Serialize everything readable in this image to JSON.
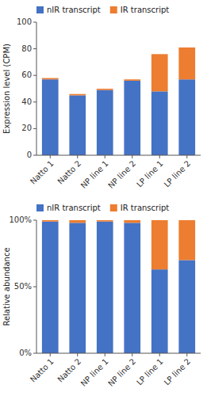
{
  "chart_data": [
    {
      "type": "bar",
      "stacked": true,
      "legend": "upper left",
      "grid": false,
      "ylabel": "Expression level (CPM)",
      "categories": [
        "Natto 1",
        "Natto 2",
        "NP line 1",
        "NP line 2",
        "LP line 1",
        "LP line 2"
      ],
      "series": [
        {
          "name": "nIR transcript",
          "color": "#4472C4",
          "values": [
            57,
            45,
            49,
            56,
            48,
            57
          ]
        },
        {
          "name": "IR transcript",
          "color": "#ED7D31",
          "values": [
            1,
            1,
            1,
            1,
            28,
            24
          ]
        }
      ],
      "ylim": [
        0,
        100
      ],
      "yticks": [
        0,
        20,
        40,
        60,
        80,
        100
      ]
    },
    {
      "type": "bar",
      "stacked": true,
      "legend": "upper left",
      "grid": false,
      "ylabel": "Relative abundance",
      "categories": [
        "Natto 1",
        "Natto 2",
        "NP line 1",
        "NP line 2",
        "LP line 1",
        "LP line 2"
      ],
      "series": [
        {
          "name": "nIR transcript",
          "color": "#4472C4",
          "values": [
            99,
            98,
            99,
            98,
            63,
            70
          ]
        },
        {
          "name": "IR transcript",
          "color": "#ED7D31",
          "values": [
            1,
            2,
            1,
            2,
            37,
            30
          ]
        }
      ],
      "ylim": [
        0,
        100
      ],
      "yticks": [
        {
          "value": 0,
          "label": "0%"
        },
        {
          "value": 50,
          "label": "50%"
        },
        {
          "value": 100,
          "label": "100%"
        }
      ]
    }
  ]
}
